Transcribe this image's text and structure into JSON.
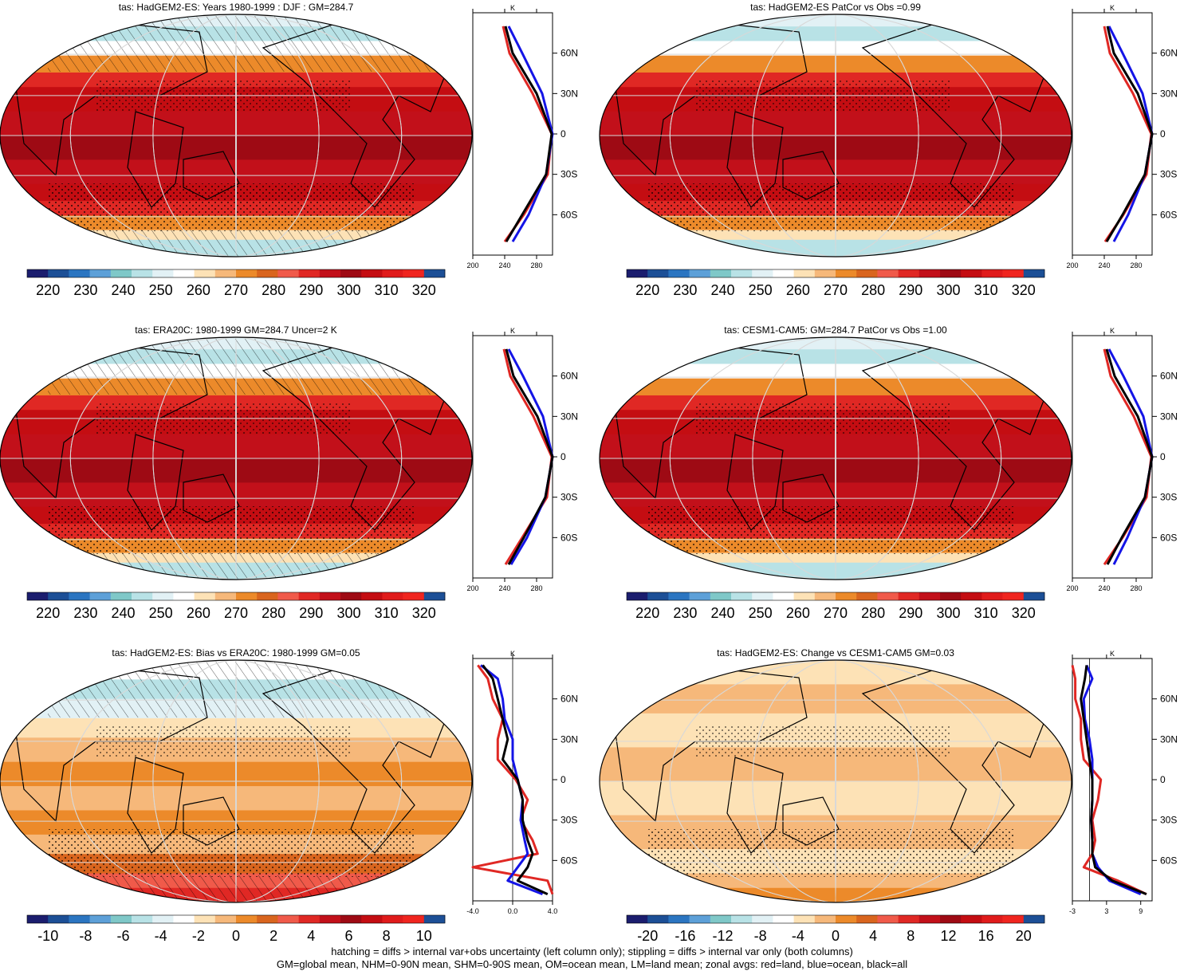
{
  "colors": {
    "absolute_palette": [
      "#1b1d6e",
      "#1c4f96",
      "#2b75c1",
      "#5da0d8",
      "#7fc8c8",
      "#b8e2e6",
      "#e2f1f5",
      "#ffffff",
      "#fde2b6",
      "#f6b87a",
      "#ec8a2a",
      "#d9651e",
      "#f05a4a",
      "#e02824",
      "#c2101a",
      "#9e0a14",
      "#c40d12",
      "#e01b1b",
      "#f0251f",
      "#1c4f96"
    ],
    "diff_palette": [
      "#1b1d6e",
      "#1c4f96",
      "#2b75c1",
      "#5da0d8",
      "#7fc8c8",
      "#b8e2e6",
      "#e2f1f5",
      "#ffffff",
      "#fde2b6",
      "#f6b87a",
      "#ec8a2a",
      "#d9651e",
      "#f05a4a",
      "#e02824",
      "#c2101a",
      "#9e0a14",
      "#c40d12",
      "#e01b1b",
      "#f0251f",
      "#1c4f96"
    ],
    "land": "#e02824",
    "ocean": "#1414e6",
    "all": "#000000"
  },
  "panels": [
    {
      "title": "tas: HadGEM2-ES: Years 1980-1999 : DJF : GM=284.7",
      "colorbar_labels": [
        "220",
        "230",
        "240",
        "250",
        "260",
        "270",
        "280",
        "290",
        "300",
        "310",
        "320"
      ],
      "lat_labels": [
        "60N",
        "30N",
        "0",
        "30S",
        "60S"
      ],
      "zonal_unit": "K",
      "zonal_xticks": [
        "200",
        "240",
        "280"
      ],
      "style": "absolute",
      "hatch": true
    },
    {
      "title": "tas: HadGEM2-ES PatCor vs Obs =0.99",
      "colorbar_labels": [
        "220",
        "230",
        "240",
        "250",
        "260",
        "270",
        "280",
        "290",
        "300",
        "310",
        "320"
      ],
      "lat_labels": [
        "60N",
        "30N",
        "0",
        "30S",
        "60S"
      ],
      "zonal_unit": "K",
      "zonal_xticks": [
        "200",
        "240",
        "280"
      ],
      "style": "absolute",
      "hatch": false
    },
    {
      "title": "tas: ERA20C: 1980-1999 GM=284.7 Uncer=2 K",
      "colorbar_labels": [
        "220",
        "230",
        "240",
        "250",
        "260",
        "270",
        "280",
        "290",
        "300",
        "310",
        "320"
      ],
      "lat_labels": [
        "60N",
        "30N",
        "0",
        "30S",
        "60S"
      ],
      "zonal_unit": "K",
      "zonal_xticks": [
        "200",
        "240",
        "280"
      ],
      "style": "absolute",
      "hatch": true
    },
    {
      "title": "tas: CESM1-CAM5: GM=284.7 PatCor vs Obs =1.00",
      "colorbar_labels": [
        "220",
        "230",
        "240",
        "250",
        "260",
        "270",
        "280",
        "290",
        "300",
        "310",
        "320"
      ],
      "lat_labels": [
        "60N",
        "30N",
        "0",
        "30S",
        "60S"
      ],
      "zonal_unit": "K",
      "zonal_xticks": [
        "200",
        "240",
        "280"
      ],
      "style": "absolute",
      "hatch": false
    },
    {
      "title": "tas: HadGEM2-ES: Bias vs ERA20C: 1980-1999 GM=0.05",
      "colorbar_labels": [
        "-10",
        "-8",
        "-6",
        "-4",
        "-2",
        "0",
        "2",
        "4",
        "6",
        "8",
        "10"
      ],
      "lat_labels": [
        "60N",
        "30N",
        "0",
        "30S",
        "60S"
      ],
      "zonal_unit": "K",
      "zonal_xticks": [
        "-4.0",
        "0.0",
        "4.0"
      ],
      "style": "bias",
      "hatch": true
    },
    {
      "title": "tas: HadGEM2-ES: Change vs CESM1-CAM5 GM=0.03",
      "colorbar_labels": [
        "-20",
        "-16",
        "-12",
        "-8",
        "-4",
        "0",
        "4",
        "8",
        "12",
        "16",
        "20"
      ],
      "lat_labels": [
        "60N",
        "30N",
        "0",
        "30S",
        "60S"
      ],
      "zonal_unit": "K",
      "zonal_xticks": [
        "-3",
        "3",
        "9"
      ],
      "style": "change",
      "hatch": false
    }
  ],
  "chart_data": [
    {
      "type": "heatmap",
      "title": "tas: HadGEM2-ES: Years 1980-1999 : DJF : GM=284.7",
      "zonal_profile": {
        "lat": [
          80,
          60,
          30,
          0,
          -30,
          -60,
          -80
        ],
        "all": [
          241,
          250,
          280,
          299,
          292,
          262,
          242
        ],
        "land": [
          238,
          246,
          275,
          299,
          294,
          264,
          240
        ],
        "ocean": [
          245,
          262,
          287,
          300,
          292,
          270,
          250
        ]
      },
      "xlim": [
        200,
        300
      ]
    },
    {
      "type": "heatmap",
      "title": "tas: HadGEM2-ES PatCor vs Obs =0.99",
      "zonal_profile": {
        "lat": [
          80,
          60,
          30,
          0,
          -30,
          -60,
          -80
        ],
        "all": [
          244,
          252,
          282,
          300,
          291,
          263,
          243
        ],
        "land": [
          240,
          247,
          276,
          299,
          293,
          264,
          241
        ],
        "ocean": [
          246,
          263,
          288,
          300,
          291,
          270,
          252
        ]
      },
      "xlim": [
        200,
        300
      ]
    },
    {
      "type": "heatmap",
      "title": "tas: ERA20C: 1980-1999 GM=284.7 Uncer=2 K",
      "zonal_profile": {
        "lat": [
          80,
          60,
          30,
          0,
          -30,
          -60,
          -80
        ],
        "all": [
          242,
          251,
          281,
          300,
          291,
          264,
          245
        ],
        "land": [
          239,
          247,
          276,
          299,
          293,
          262,
          241
        ],
        "ocean": [
          245,
          263,
          288,
          300,
          291,
          268,
          248
        ]
      },
      "xlim": [
        200,
        300
      ]
    },
    {
      "type": "heatmap",
      "title": "tas: CESM1-CAM5: GM=284.7 PatCor vs Obs =1.00",
      "zonal_profile": {
        "lat": [
          80,
          60,
          30,
          0,
          -30,
          -60,
          -80
        ],
        "all": [
          243,
          253,
          282,
          300,
          291,
          262,
          244
        ],
        "land": [
          240,
          248,
          277,
          299,
          293,
          263,
          240
        ],
        "ocean": [
          246,
          264,
          289,
          300,
          291,
          269,
          252
        ]
      },
      "xlim": [
        200,
        300
      ]
    },
    {
      "type": "heatmap",
      "title": "tas: HadGEM2-ES: Bias vs ERA20C: 1980-1999 GM=0.05",
      "zonal_profile": {
        "lat": [
          85,
          75,
          60,
          45,
          30,
          15,
          0,
          -15,
          -30,
          -45,
          -55,
          -65,
          -75,
          -85
        ],
        "all": [
          -3.0,
          -2.0,
          -1.5,
          -1.0,
          -0.5,
          -1.0,
          0.5,
          1.0,
          1.0,
          1.5,
          2.0,
          1.5,
          0.5,
          3.5
        ],
        "land": [
          -3.5,
          -2.5,
          -2.0,
          -1.0,
          -1.5,
          -1.5,
          0.3,
          1.5,
          0.8,
          2.0,
          2.5,
          -4.0,
          3.5,
          4.0
        ],
        "ocean": [
          -3.2,
          -1.5,
          -1.0,
          -0.8,
          0.0,
          0.0,
          0.5,
          1.0,
          0.8,
          1.2,
          1.5,
          0.5,
          -0.5,
          3.0
        ]
      },
      "xlim": [
        -4,
        4
      ]
    },
    {
      "type": "heatmap",
      "title": "tas: HadGEM2-ES: Change vs CESM1-CAM5 GM=0.03",
      "zonal_profile": {
        "lat": [
          85,
          75,
          60,
          45,
          30,
          15,
          0,
          -15,
          -30,
          -45,
          -55,
          -65,
          -75,
          -85
        ],
        "all": [
          -0.5,
          -0.8,
          -1.5,
          -1.0,
          -0.5,
          0.0,
          0.5,
          0.5,
          0.3,
          0.5,
          0.5,
          1.0,
          4.0,
          10.0
        ],
        "land": [
          -3.0,
          -2.5,
          -2.5,
          -1.5,
          -1.5,
          -1.0,
          2.0,
          1.5,
          0.5,
          1.0,
          0.5,
          -1.0,
          5.0,
          10.0
        ],
        "ocean": [
          -0.5,
          0.5,
          -1.0,
          -0.8,
          0.0,
          0.5,
          0.5,
          0.5,
          0.3,
          0.5,
          0.5,
          1.5,
          3.5,
          9.0
        ]
      },
      "xlim": [
        -3,
        11
      ]
    }
  ],
  "footer": {
    "line1": "hatching = diffs > internal var+obs uncertainty (left column only); stippling = diffs > internal var only (both columns)",
    "line2": "GM=global mean, NHM=0-90N mean, SHM=0-90S mean, OM=ocean mean, LM=land mean; zonal avgs: red=land, blue=ocean, black=all"
  }
}
